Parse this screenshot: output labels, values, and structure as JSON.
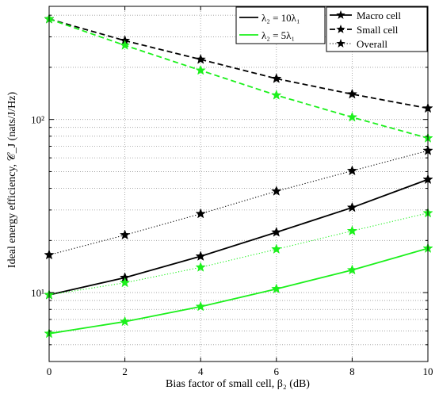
{
  "chart_data": {
    "type": "line",
    "x": [
      0,
      2,
      4,
      6,
      8,
      10
    ],
    "xlabel": "Bias factor of small cell, β₂ (dB)",
    "ylabel": "Ideal energy efficiency, 𝒞_J (nats/J/Hz)",
    "xlim": [
      0,
      10
    ],
    "ylim": [
      4,
      450
    ],
    "yscale": "log",
    "grid": true,
    "xticks": [
      "0",
      "2",
      "4",
      "6",
      "8",
      "10"
    ],
    "yticks": [
      {
        "value": 10,
        "label": "10¹"
      },
      {
        "value": 100,
        "label": "10²"
      }
    ],
    "legend_density": [
      {
        "label": "λ₂ = 10λ₁",
        "color": "#000000"
      },
      {
        "label": "λ₂ = 5λ₁",
        "color": "#1cf01c"
      }
    ],
    "legend_type": [
      {
        "label": "Macro cell",
        "dash": "solid"
      },
      {
        "label": "Small cell",
        "dash": "dashed"
      },
      {
        "label": "Overall",
        "dash": "dotted"
      }
    ],
    "series": [
      {
        "density": "λ₂ = 10λ₁",
        "type": "Macro cell",
        "color": "#000000",
        "dash": "solid",
        "values": [
          9.7,
          12.2,
          16.2,
          22.3,
          31.0,
          45.0
        ]
      },
      {
        "density": "λ₂ = 10λ₁",
        "type": "Small cell",
        "color": "#000000",
        "dash": "dashed",
        "values": [
          380,
          285,
          222,
          172,
          140,
          116
        ]
      },
      {
        "density": "λ₂ = 10λ₁",
        "type": "Overall",
        "color": "#000000",
        "dash": "dotted",
        "values": [
          16.5,
          21.5,
          28.5,
          38.5,
          50.5,
          66.0
        ]
      },
      {
        "density": "λ₂ = 5λ₁",
        "type": "Macro cell",
        "color": "#1cf01c",
        "dash": "solid",
        "values": [
          5.8,
          6.8,
          8.3,
          10.5,
          13.5,
          18.0
        ]
      },
      {
        "density": "λ₂ = 5λ₁",
        "type": "Small cell",
        "color": "#1cf01c",
        "dash": "dashed",
        "values": [
          380,
          268,
          192,
          138,
          103,
          78
        ]
      },
      {
        "density": "λ₂ = 5λ₁",
        "type": "Overall",
        "color": "#1cf01c",
        "dash": "dotted",
        "values": [
          9.7,
          11.4,
          14.0,
          17.8,
          22.7,
          28.8
        ]
      }
    ]
  }
}
